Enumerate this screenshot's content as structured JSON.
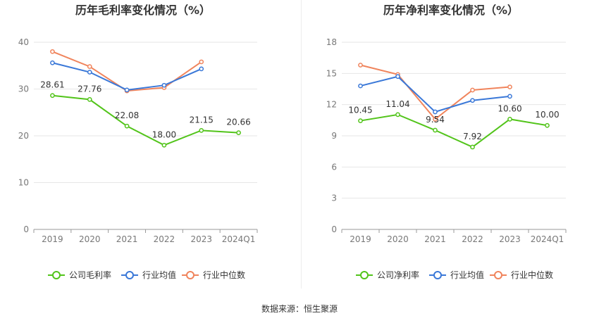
{
  "source": "数据来源：恒生聚源",
  "colors": {
    "company": "#52c41a",
    "industry_avg": "#3a78d8",
    "industry_median": "#f0845c",
    "grid": "#e6e6e6",
    "axis_text": "#777777",
    "title": "#333333"
  },
  "chart_data": [
    {
      "type": "line",
      "title": "历年毛利率变化情况（%）",
      "categories": [
        "2019",
        "2020",
        "2021",
        "2022",
        "2023",
        "2024Q1"
      ],
      "ylim": [
        0,
        40
      ],
      "yticks": [
        0,
        10,
        20,
        30,
        40
      ],
      "grid": true,
      "legend": "bottom-center",
      "series": [
        {
          "name": "公司毛利率",
          "key": "company",
          "labeled": true,
          "values": [
            28.61,
            27.76,
            22.08,
            18.0,
            21.15,
            20.66
          ],
          "labels": [
            "28.61",
            "27.76",
            "22.08",
            "18.00",
            "21.15",
            "20.66"
          ]
        },
        {
          "name": "行业均值",
          "key": "industry_avg",
          "labeled": false,
          "values": [
            35.6,
            33.6,
            29.8,
            30.8,
            34.3,
            null
          ]
        },
        {
          "name": "行业中位数",
          "key": "industry_median",
          "labeled": false,
          "values": [
            38.0,
            34.8,
            29.6,
            30.3,
            35.8,
            null
          ]
        }
      ]
    },
    {
      "type": "line",
      "title": "历年净利率变化情况（%）",
      "categories": [
        "2019",
        "2020",
        "2021",
        "2022",
        "2023",
        "2024Q1"
      ],
      "ylim": [
        0,
        18
      ],
      "yticks": [
        0,
        3,
        6,
        9,
        12,
        15,
        18
      ],
      "grid": true,
      "legend": "bottom-center",
      "series": [
        {
          "name": "公司净利率",
          "key": "company",
          "labeled": true,
          "values": [
            10.45,
            11.04,
            9.54,
            7.92,
            10.6,
            10.0
          ],
          "labels": [
            "10.45",
            "11.04",
            "9.54",
            "7.92",
            "10.60",
            "10.00"
          ]
        },
        {
          "name": "行业均值",
          "key": "industry_avg",
          "labeled": false,
          "values": [
            13.8,
            14.7,
            11.3,
            12.4,
            12.8,
            null
          ]
        },
        {
          "name": "行业中位数",
          "key": "industry_median",
          "labeled": false,
          "values": [
            15.8,
            14.9,
            10.6,
            13.4,
            13.7,
            null
          ]
        }
      ]
    }
  ]
}
